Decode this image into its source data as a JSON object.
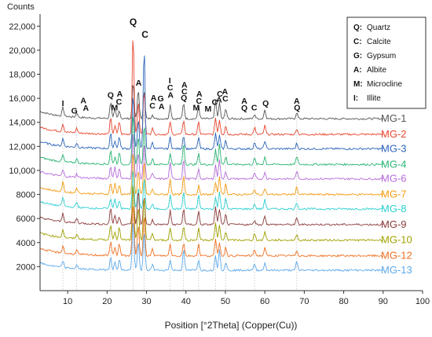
{
  "chart_data": {
    "type": "line",
    "ylabel": "Counts",
    "xlabel": "Position [°2Theta] (Copper(Cu))",
    "xlim": [
      3,
      100
    ],
    "ylim": [
      0,
      23000
    ],
    "x_ticks": [
      10,
      20,
      30,
      40,
      50,
      60,
      70,
      80,
      90,
      100
    ],
    "y_ticks": [
      2000,
      4000,
      6000,
      8000,
      10000,
      12000,
      14000,
      16000,
      18000,
      20000,
      22000
    ],
    "y_tick_labels": [
      "2000",
      "4000",
      "6000",
      "8000",
      "10,000",
      "12,000",
      "14,000",
      "16,000",
      "18,000",
      "20,000",
      "22,000"
    ],
    "grid": "vertical dotted reference lines at phase peaks",
    "legend_position": "top-right",
    "legend": [
      {
        "key": "Q:",
        "name": "Quartz"
      },
      {
        "key": "C:",
        "name": "Calcite"
      },
      {
        "key": "G:",
        "name": "Gypsum"
      },
      {
        "key": "A:",
        "name": "Albite"
      },
      {
        "key": "M:",
        "name": "Microcline"
      },
      {
        "key": "I:",
        "name": "Illite"
      }
    ],
    "series": [
      {
        "name": "MG-1",
        "color": "#555555",
        "baseline": 14300
      },
      {
        "name": "MG-2",
        "color": "#e8462f",
        "baseline": 13000
      },
      {
        "name": "MG-3",
        "color": "#2a64b8",
        "baseline": 11800
      },
      {
        "name": "MG-4",
        "color": "#2bb673",
        "baseline": 10500
      },
      {
        "name": "MG-6",
        "color": "#b56bd8",
        "baseline": 9300
      },
      {
        "name": "MG-7",
        "color": "#f39c12",
        "baseline": 8000
      },
      {
        "name": "MG-8",
        "color": "#2ccfd0",
        "baseline": 6800
      },
      {
        "name": "MG-9",
        "color": "#8b3a3a",
        "baseline": 5500
      },
      {
        "name": "MG-10",
        "color": "#a0a000",
        "baseline": 4200
      },
      {
        "name": "MG-12",
        "color": "#f07020",
        "baseline": 2900
      },
      {
        "name": "MG-13",
        "color": "#5da9e9",
        "baseline": 1700
      }
    ],
    "peaks": [
      {
        "pos": 8.8,
        "h": 700
      },
      {
        "pos": 12.3,
        "h": 400
      },
      {
        "pos": 20.9,
        "h": 1200
      },
      {
        "pos": 22.0,
        "h": 800
      },
      {
        "pos": 23.1,
        "h": 900
      },
      {
        "pos": 26.6,
        "h": 4200
      },
      {
        "pos": 27.9,
        "h": 2500
      },
      {
        "pos": 29.4,
        "h": 3200
      },
      {
        "pos": 31.5,
        "h": 500
      },
      {
        "pos": 36.0,
        "h": 1200
      },
      {
        "pos": 39.4,
        "h": 1500
      },
      {
        "pos": 43.2,
        "h": 1000
      },
      {
        "pos": 47.5,
        "h": 1300
      },
      {
        "pos": 48.5,
        "h": 1500
      },
      {
        "pos": 50.1,
        "h": 800
      },
      {
        "pos": 57.4,
        "h": 500
      },
      {
        "pos": 60.0,
        "h": 700
      },
      {
        "pos": 68.1,
        "h": 600
      }
    ],
    "highlight": [
      {
        "series": "MG-2",
        "pos": 26.6,
        "top": 21700
      },
      {
        "series": "MG-3",
        "pos": 29.4,
        "top": 20400
      },
      {
        "series": "MG-1",
        "pos": 27.9,
        "top": 16800
      }
    ],
    "annotations": [
      {
        "text": "I",
        "x": 8.8,
        "y": 15350
      },
      {
        "text": "G",
        "x": 11.7,
        "y": 14750
      },
      {
        "text": "A",
        "x": 14.0,
        "y": 15600
      },
      {
        "text": "A",
        "x": 14.6,
        "y": 14950
      },
      {
        "text": "Q",
        "x": 20.9,
        "y": 16050
      },
      {
        "text": "A",
        "x": 23.2,
        "y": 16150
      },
      {
        "text": "M",
        "x": 21.9,
        "y": 15000
      },
      {
        "text": "C",
        "x": 23.0,
        "y": 15500
      },
      {
        "text": "Q",
        "x": 26.6,
        "y": 22100
      },
      {
        "text": "C",
        "x": 29.6,
        "y": 21050
      },
      {
        "text": "A",
        "x": 28.0,
        "y": 17050
      },
      {
        "text": "A",
        "x": 31.8,
        "y": 15800
      },
      {
        "text": "C",
        "x": 31.5,
        "y": 15150
      },
      {
        "text": "G",
        "x": 33.6,
        "y": 15750
      },
      {
        "text": "A",
        "x": 33.8,
        "y": 15100
      },
      {
        "text": "A",
        "x": 36.1,
        "y": 16050
      },
      {
        "text": "I",
        "x": 35.9,
        "y": 17250
      },
      {
        "text": "C",
        "x": 36.0,
        "y": 16650
      },
      {
        "text": "A",
        "x": 39.6,
        "y": 16900
      },
      {
        "text": "C",
        "x": 39.6,
        "y": 16350
      },
      {
        "text": "Q",
        "x": 39.5,
        "y": 15800
      },
      {
        "text": "M",
        "x": 42.6,
        "y": 15000
      },
      {
        "text": "A",
        "x": 43.4,
        "y": 16150
      },
      {
        "text": "C",
        "x": 43.3,
        "y": 15550
      },
      {
        "text": "M",
        "x": 45.6,
        "y": 14900
      },
      {
        "text": "C",
        "x": 47.3,
        "y": 15450
      },
      {
        "text": "C",
        "x": 48.6,
        "y": 16150
      },
      {
        "text": "A",
        "x": 48.4,
        "y": 15650
      },
      {
        "text": "A",
        "x": 49.9,
        "y": 16350
      },
      {
        "text": "C",
        "x": 50.0,
        "y": 15750
      },
      {
        "text": "A",
        "x": 54.8,
        "y": 15550
      },
      {
        "text": "Q",
        "x": 54.8,
        "y": 14950
      },
      {
        "text": "C",
        "x": 57.3,
        "y": 15000
      },
      {
        "text": "Q",
        "x": 60.2,
        "y": 15350
      },
      {
        "text": "A",
        "x": 68.1,
        "y": 15550
      },
      {
        "text": "Q",
        "x": 68.2,
        "y": 15000
      }
    ]
  }
}
